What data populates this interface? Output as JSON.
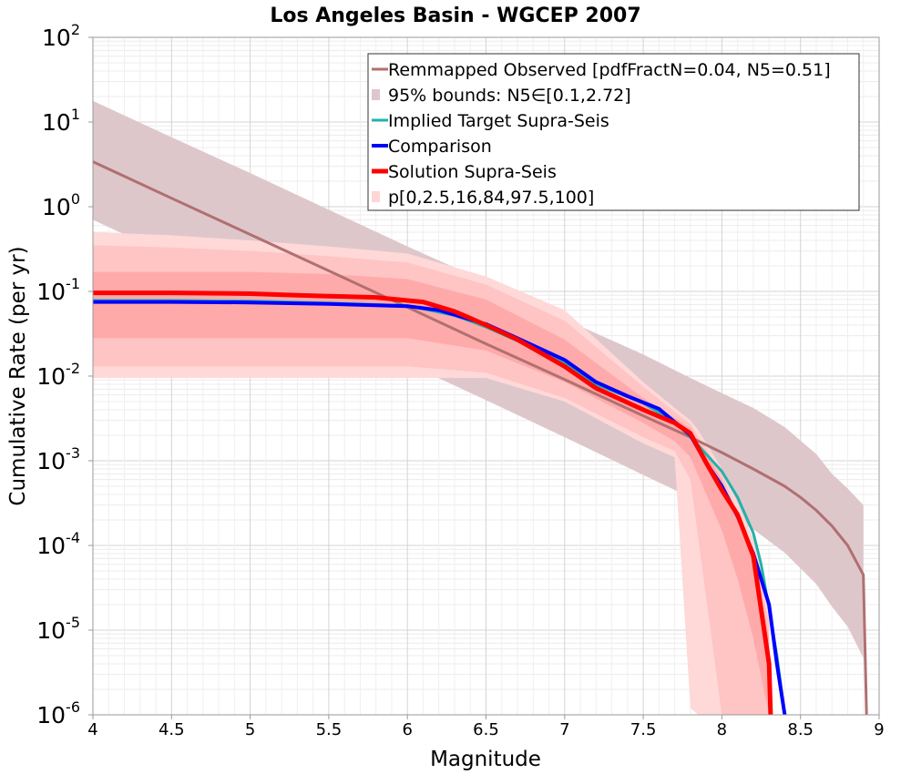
{
  "chart_data": {
    "type": "line",
    "title": "Los Angeles Basin - WGCEP 2007",
    "xlabel": "Magnitude",
    "ylabel": "Cumulative Rate (per yr)",
    "xlim": [
      4,
      9
    ],
    "ylim": [
      1e-06,
      100
    ],
    "yscale": "log",
    "grid": true,
    "legend_position": "top-right",
    "x_ticks": [
      4,
      4.5,
      5,
      5.5,
      6,
      6.5,
      7,
      7.5,
      8,
      8.5,
      9
    ],
    "x_tick_labels": [
      "4",
      "4.5",
      "5",
      "5.5",
      "6",
      "6.5",
      "7",
      "7.5",
      "8",
      "8.5",
      "9"
    ],
    "y_ticks": [
      {
        "value": 1e-06,
        "base": "10",
        "exp": "-6"
      },
      {
        "value": 1e-05,
        "base": "10",
        "exp": "-5"
      },
      {
        "value": 0.0001,
        "base": "10",
        "exp": "-4"
      },
      {
        "value": 0.001,
        "base": "10",
        "exp": "-3"
      },
      {
        "value": 0.01,
        "base": "10",
        "exp": "-2"
      },
      {
        "value": 0.1,
        "base": "10",
        "exp": "-1"
      },
      {
        "value": 1,
        "base": "10",
        "exp": "0"
      },
      {
        "value": 10,
        "base": "10",
        "exp": "1"
      },
      {
        "value": 100,
        "base": "10",
        "exp": "2"
      }
    ],
    "legend": [
      {
        "label": "Remmapped Observed [pdfFractN=0.04, N5=0.51]",
        "kind": "line",
        "color": "#b07070",
        "width": 3
      },
      {
        "label": "95% bounds: N5∈[0.1,2.72]",
        "kind": "band",
        "color": "#dec7cb"
      },
      {
        "label": "Implied Target Supra-Seis",
        "kind": "line",
        "color": "#20b2aa",
        "width": 3
      },
      {
        "label": "Comparison",
        "kind": "line",
        "color": "#0000ff",
        "width": 4
      },
      {
        "label": "Solution Supra-Seis",
        "kind": "line",
        "color": "#ff0000",
        "width": 5
      },
      {
        "label": "p[0,2.5,16,84,97.5,100]",
        "kind": "band",
        "color": "#ffd5d5"
      }
    ],
    "bounds_band": {
      "name": "95% bounds: N5∈[0.1,2.72]",
      "color": "#dec7cb",
      "x": [
        4,
        4.5,
        5,
        5.5,
        6,
        6.5,
        7,
        7.5,
        7.8,
        8,
        8.2,
        8.4,
        8.6,
        8.7,
        8.8,
        8.9
      ],
      "upper": [
        17.8,
        6.6,
        2.5,
        0.92,
        0.34,
        0.13,
        0.047,
        0.018,
        0.0095,
        0.0063,
        0.0042,
        0.0025,
        0.0012,
        0.0007,
        0.00047,
        0.0003
      ],
      "lower": [
        0.7,
        0.26,
        0.096,
        0.036,
        0.014,
        0.0052,
        0.0019,
        0.00068,
        0.00037,
        0.00025,
        0.000155,
        8.2e-05,
        3.5e-05,
        1.9e-05,
        1.1e-05,
        4.7e-06
      ]
    },
    "percentile_bands": [
      {
        "name": "p 0-100",
        "color": "#ffd8d8",
        "x": [
          4,
          4.5,
          5,
          5.5,
          6,
          6.5,
          7,
          7.5,
          7.7,
          7.8,
          7.85,
          8,
          8.1,
          8.2,
          8.25,
          8.3
        ],
        "upper": [
          0.5,
          0.46,
          0.4,
          0.34,
          0.28,
          0.15,
          0.06,
          0.0085,
          0.0042,
          0.003,
          0.0023,
          0.0008,
          0.00032,
          0.00012,
          5e-05,
          1.5e-05
        ],
        "lower": [
          0.0095,
          0.0095,
          0.0095,
          0.0095,
          0.0095,
          0.0095,
          0.005,
          0.0016,
          0.0011,
          1.2e-06,
          1e-06,
          1e-06,
          1e-06,
          1e-06,
          1e-06,
          1e-06
        ]
      },
      {
        "name": "p 2.5-97.5",
        "color": "#ffc4c4",
        "x": [
          4,
          4.5,
          5,
          5.5,
          6,
          6.5,
          7,
          7.5,
          7.7,
          7.8,
          8,
          8.1,
          8.2,
          8.3
        ],
        "upper": [
          0.35,
          0.33,
          0.3,
          0.26,
          0.22,
          0.12,
          0.045,
          0.0075,
          0.0038,
          0.0027,
          0.0007,
          0.00025,
          9e-05,
          1.2e-05
        ],
        "lower": [
          0.013,
          0.013,
          0.013,
          0.013,
          0.013,
          0.011,
          0.0055,
          0.0019,
          0.0013,
          0.0006,
          1e-06,
          1e-06,
          1e-06,
          1e-06
        ]
      },
      {
        "name": "p 16-84",
        "color": "#ffaaaa",
        "x": [
          4,
          4.5,
          5,
          5.5,
          6,
          6.5,
          7,
          7.5,
          7.7,
          7.8,
          8,
          8.1,
          8.2,
          8.3
        ],
        "upper": [
          0.17,
          0.17,
          0.17,
          0.16,
          0.14,
          0.08,
          0.027,
          0.0055,
          0.0032,
          0.0024,
          0.0006,
          0.00022,
          8e-05,
          8e-06
        ],
        "lower": [
          0.028,
          0.028,
          0.028,
          0.028,
          0.028,
          0.02,
          0.0085,
          0.0028,
          0.0017,
          0.0011,
          0.00015,
          4e-05,
          8e-06,
          1e-06
        ]
      }
    ],
    "series": [
      {
        "name": "Remmapped Observed [pdfFractN=0.04, N5=0.51]",
        "color": "#b07070",
        "width": 3,
        "x": [
          4,
          4.5,
          5,
          5.5,
          6,
          6.5,
          7,
          7.5,
          7.8,
          8,
          8.2,
          8.4,
          8.5,
          8.6,
          8.7,
          8.8,
          8.9,
          8.92
        ],
        "values": [
          3.4,
          1.26,
          0.47,
          0.175,
          0.065,
          0.024,
          0.0091,
          0.0034,
          0.0019,
          0.00125,
          0.0008,
          0.0005,
          0.00037,
          0.00026,
          0.00017,
          0.0001,
          4.5e-05,
          1e-06
        ]
      },
      {
        "name": "Implied Target Supra-Seis",
        "color": "#20b2aa",
        "width": 3,
        "x": [
          4,
          4.5,
          5,
          5.5,
          6,
          6.3,
          6.5,
          6.7,
          7,
          7.2,
          7.5,
          7.6,
          7.7,
          7.8,
          7.9,
          8,
          8.1,
          8.2,
          8.25,
          8.3,
          8.35,
          8.4
        ],
        "values": [
          0.078,
          0.078,
          0.077,
          0.073,
          0.068,
          0.052,
          0.038,
          0.026,
          0.014,
          0.008,
          0.0048,
          0.0037,
          0.0029,
          0.0019,
          0.0012,
          0.00075,
          0.00037,
          0.00014,
          6e-05,
          1.8e-05,
          5e-06,
          1e-06
        ]
      },
      {
        "name": "Comparison",
        "color": "#0000ff",
        "width": 4,
        "x": [
          4,
          4.5,
          5,
          5.5,
          6,
          6.2,
          6.5,
          6.7,
          7,
          7.2,
          7.4,
          7.6,
          7.8,
          7.9,
          8,
          8.1,
          8.2,
          8.3,
          8.35,
          8.4
        ],
        "values": [
          0.075,
          0.075,
          0.074,
          0.071,
          0.067,
          0.06,
          0.041,
          0.028,
          0.0155,
          0.0085,
          0.0058,
          0.0041,
          0.002,
          0.00095,
          0.0005,
          0.00022,
          8e-05,
          2e-05,
          4e-06,
          1e-06
        ]
      },
      {
        "name": "Solution Supra-Seis",
        "color": "#ff0000",
        "width": 5,
        "x": [
          4,
          4.5,
          5,
          5.3,
          5.5,
          5.8,
          6,
          6.1,
          6.3,
          6.5,
          6.7,
          7,
          7.2,
          7.5,
          7.7,
          7.8,
          7.9,
          8,
          8.1,
          8.2,
          8.3,
          8.31
        ],
        "values": [
          0.096,
          0.096,
          0.094,
          0.09,
          0.088,
          0.085,
          0.078,
          0.075,
          0.058,
          0.04,
          0.027,
          0.013,
          0.0072,
          0.004,
          0.0028,
          0.0021,
          0.00095,
          0.00045,
          0.00023,
          7.5e-05,
          4e-06,
          1e-06
        ]
      }
    ]
  }
}
